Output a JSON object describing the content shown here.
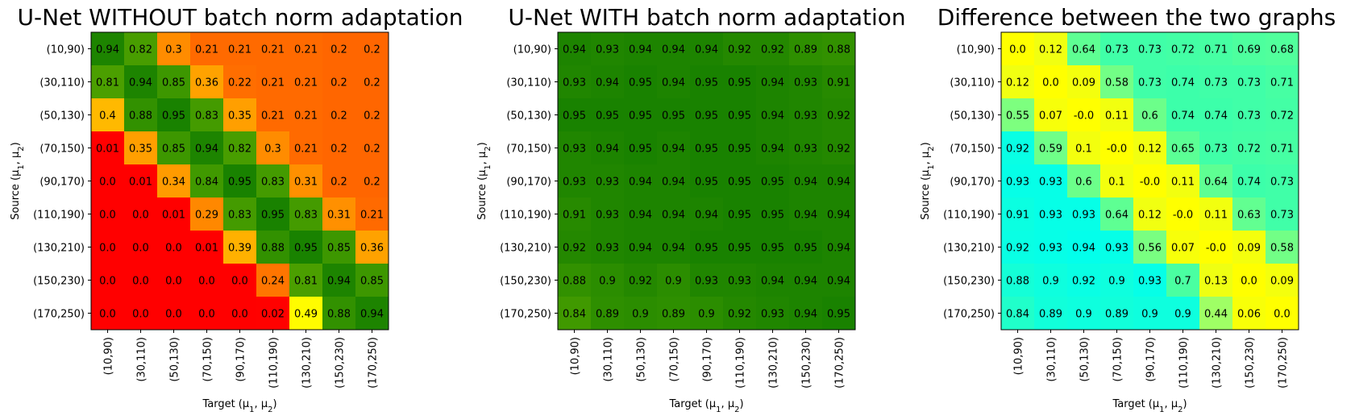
{
  "chart_data": [
    {
      "type": "heatmap",
      "title": "U-Net WITHOUT batch norm adaptation",
      "xlabel": "Target (μ1, μ2)",
      "ylabel": "Source (μ1, μ2)",
      "x_categories": [
        "(10,90)",
        "(30,110)",
        "(50,130)",
        "(70,150)",
        "(90,170)",
        "(110,190)",
        "(130,210)",
        "(150,230)",
        "(170,250)"
      ],
      "y_categories": [
        "(10,90)",
        "(30,110)",
        "(50,130)",
        "(70,150)",
        "(90,170)",
        "(110,190)",
        "(130,210)",
        "(150,230)",
        "(170,250)"
      ],
      "colormap": "red-yellow-green",
      "vmin": 0.0,
      "vmax": 0.95,
      "values": [
        [
          "0.94",
          "0.82",
          "0.3",
          "0.21",
          "0.21",
          "0.21",
          "0.21",
          "0.2",
          "0.2"
        ],
        [
          "0.81",
          "0.94",
          "0.85",
          "0.36",
          "0.22",
          "0.21",
          "0.21",
          "0.2",
          "0.2"
        ],
        [
          "0.4",
          "0.88",
          "0.95",
          "0.83",
          "0.35",
          "0.21",
          "0.21",
          "0.2",
          "0.2"
        ],
        [
          "0.01",
          "0.35",
          "0.85",
          "0.94",
          "0.82",
          "0.3",
          "0.21",
          "0.2",
          "0.2"
        ],
        [
          "0.0",
          "0.01",
          "0.34",
          "0.84",
          "0.95",
          "0.83",
          "0.31",
          "0.2",
          "0.2"
        ],
        [
          "0.0",
          "0.0",
          "0.01",
          "0.29",
          "0.83",
          "0.95",
          "0.83",
          "0.31",
          "0.21"
        ],
        [
          "0.0",
          "0.0",
          "0.0",
          "0.01",
          "0.39",
          "0.88",
          "0.95",
          "0.85",
          "0.36"
        ],
        [
          "0.0",
          "0.0",
          "0.0",
          "0.0",
          "0.0",
          "0.24",
          "0.81",
          "0.94",
          "0.85"
        ],
        [
          "0.0",
          "0.0",
          "0.0",
          "0.0",
          "0.0",
          "0.02",
          "0.49",
          "0.88",
          "0.94"
        ]
      ]
    },
    {
      "type": "heatmap",
      "title": "U-Net WITH batch norm adaptation",
      "xlabel": "Target (μ1, μ2)",
      "ylabel": "Source (μ1, μ2)",
      "x_categories": [
        "(10,90)",
        "(30,110)",
        "(50,130)",
        "(70,150)",
        "(90,170)",
        "(110,190)",
        "(130,210)",
        "(150,230)",
        "(170,250)"
      ],
      "y_categories": [
        "(10,90)",
        "(30,110)",
        "(50,130)",
        "(70,150)",
        "(90,170)",
        "(110,190)",
        "(130,210)",
        "(150,230)",
        "(170,250)"
      ],
      "colormap": "red-yellow-green",
      "vmin": 0.0,
      "vmax": 0.95,
      "values": [
        [
          "0.94",
          "0.93",
          "0.94",
          "0.94",
          "0.94",
          "0.92",
          "0.92",
          "0.89",
          "0.88"
        ],
        [
          "0.93",
          "0.94",
          "0.95",
          "0.94",
          "0.95",
          "0.95",
          "0.94",
          "0.93",
          "0.91"
        ],
        [
          "0.95",
          "0.95",
          "0.95",
          "0.95",
          "0.95",
          "0.95",
          "0.94",
          "0.93",
          "0.92"
        ],
        [
          "0.93",
          "0.94",
          "0.95",
          "0.94",
          "0.95",
          "0.95",
          "0.94",
          "0.93",
          "0.92"
        ],
        [
          "0.93",
          "0.93",
          "0.94",
          "0.94",
          "0.95",
          "0.95",
          "0.95",
          "0.94",
          "0.94"
        ],
        [
          "0.91",
          "0.93",
          "0.94",
          "0.94",
          "0.94",
          "0.95",
          "0.95",
          "0.94",
          "0.94"
        ],
        [
          "0.92",
          "0.93",
          "0.94",
          "0.94",
          "0.95",
          "0.95",
          "0.95",
          "0.95",
          "0.94"
        ],
        [
          "0.88",
          "0.9",
          "0.92",
          "0.9",
          "0.93",
          "0.93",
          "0.94",
          "0.94",
          "0.94"
        ],
        [
          "0.84",
          "0.89",
          "0.9",
          "0.89",
          "0.9",
          "0.92",
          "0.93",
          "0.94",
          "0.95"
        ]
      ]
    },
    {
      "type": "heatmap",
      "title": "Difference between the two graphs",
      "xlabel": "Target (μ1, μ2)",
      "ylabel": "Source (μ1, μ2)",
      "x_categories": [
        "(10,90)",
        "(30,110)",
        "(50,130)",
        "(70,150)",
        "(90,170)",
        "(110,190)",
        "(130,210)",
        "(150,230)",
        "(170,250)"
      ],
      "y_categories": [
        "(10,90)",
        "(30,110)",
        "(50,130)",
        "(70,150)",
        "(90,170)",
        "(110,190)",
        "(130,210)",
        "(150,230)",
        "(170,250)"
      ],
      "colormap": "yellow-cyan",
      "vmin": 0.0,
      "vmax": 0.95,
      "values": [
        [
          "0.0",
          "0.12",
          "0.64",
          "0.73",
          "0.73",
          "0.72",
          "0.71",
          "0.69",
          "0.68"
        ],
        [
          "0.12",
          "0.0",
          "0.09",
          "0.58",
          "0.73",
          "0.74",
          "0.73",
          "0.73",
          "0.71"
        ],
        [
          "0.55",
          "0.07",
          "-0.0",
          "0.11",
          "0.6",
          "0.74",
          "0.74",
          "0.73",
          "0.72"
        ],
        [
          "0.92",
          "0.59",
          "0.1",
          "-0.0",
          "0.12",
          "0.65",
          "0.73",
          "0.72",
          "0.71"
        ],
        [
          "0.93",
          "0.93",
          "0.6",
          "0.1",
          "-0.0",
          "0.11",
          "0.64",
          "0.74",
          "0.73"
        ],
        [
          "0.91",
          "0.93",
          "0.93",
          "0.64",
          "0.12",
          "-0.0",
          "0.11",
          "0.63",
          "0.73"
        ],
        [
          "0.92",
          "0.93",
          "0.94",
          "0.93",
          "0.56",
          "0.07",
          "-0.0",
          "0.09",
          "0.58"
        ],
        [
          "0.88",
          "0.9",
          "0.92",
          "0.9",
          "0.93",
          "0.7",
          "0.13",
          "0.0",
          "0.09"
        ],
        [
          "0.84",
          "0.89",
          "0.9",
          "0.89",
          "0.9",
          "0.9",
          "0.44",
          "0.06",
          "0.0"
        ]
      ]
    }
  ]
}
